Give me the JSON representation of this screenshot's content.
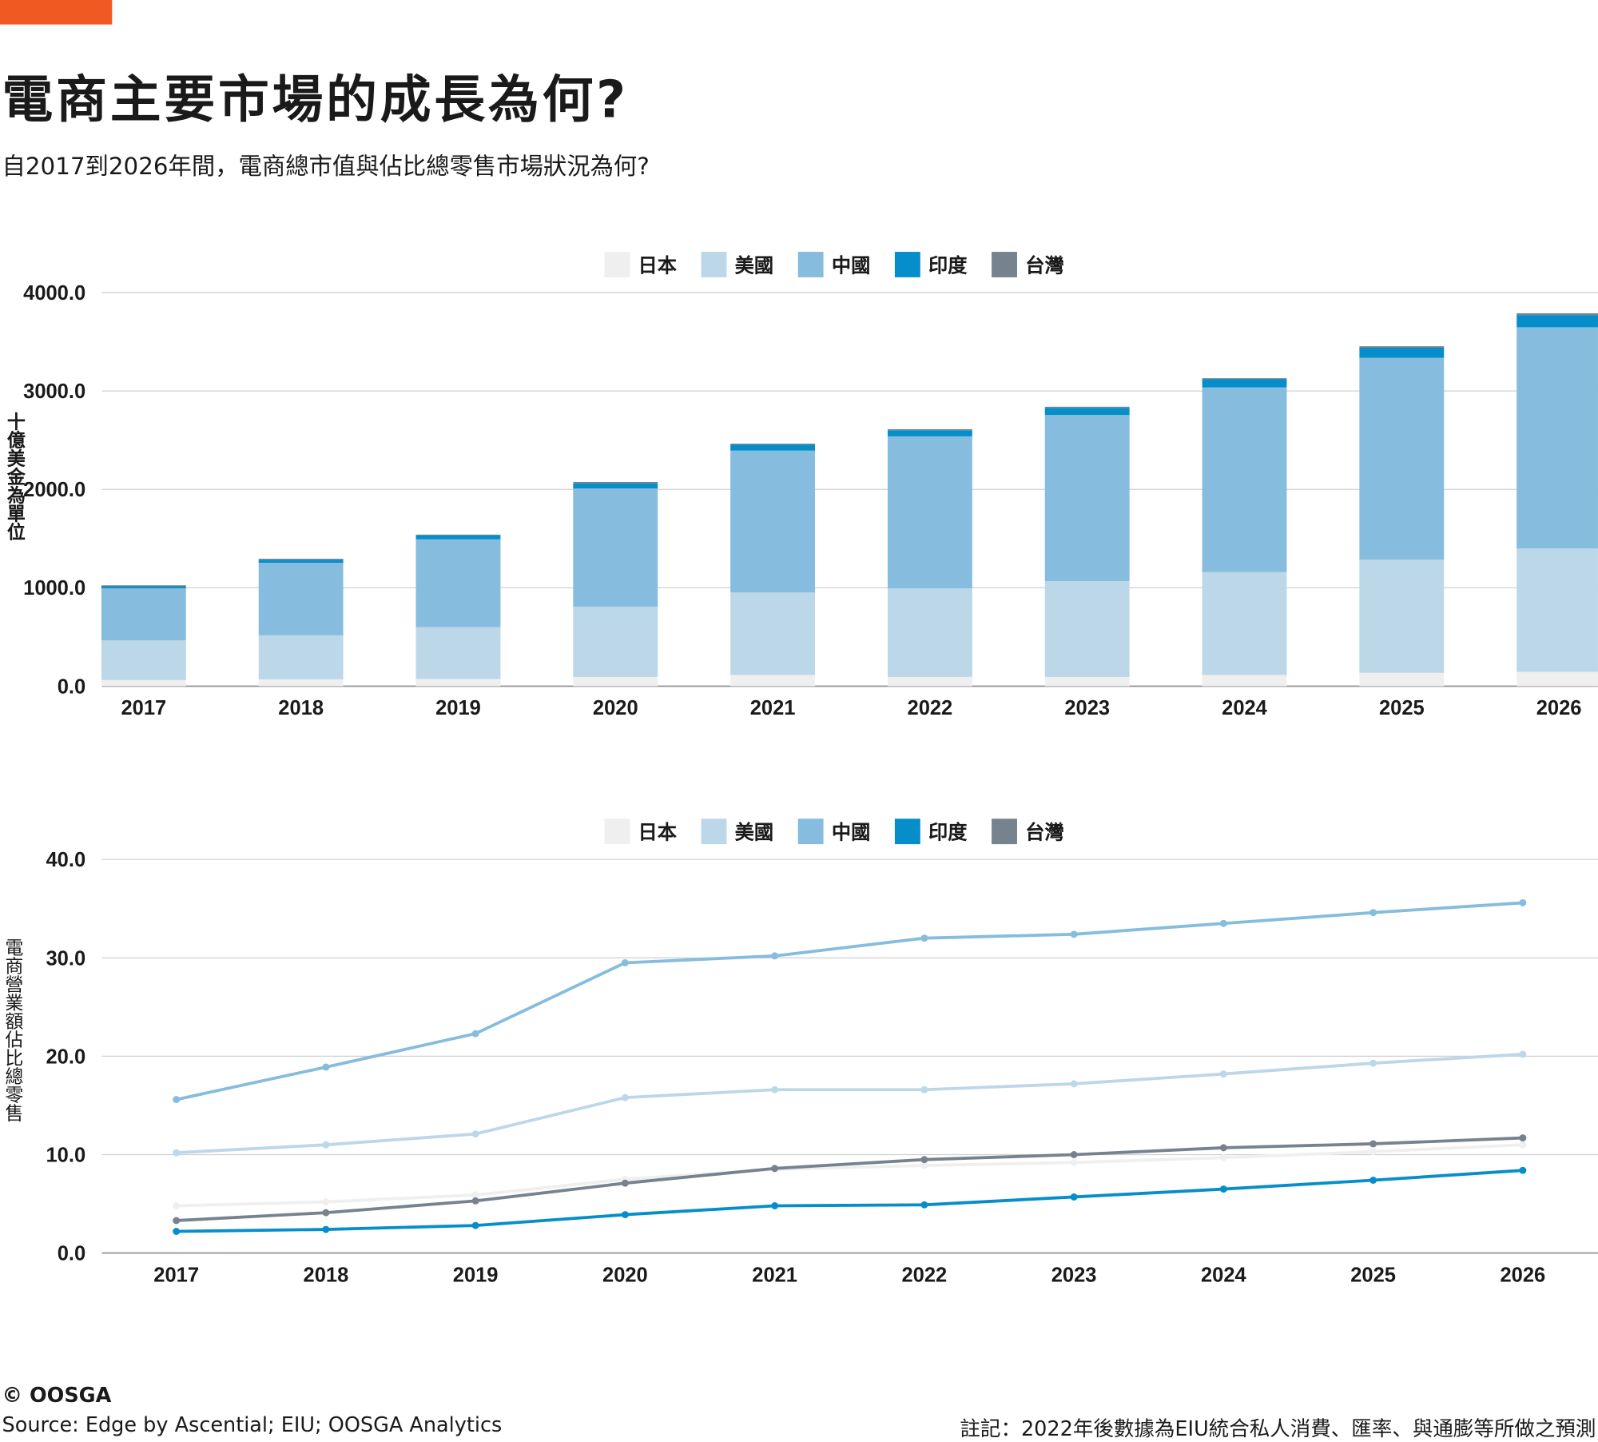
{
  "title": "電商主要市場的成長為何?",
  "subtitle": "自2017到2026年間，電商總市值與佔比總零售市場狀況為何?",
  "accent_color": "#f05a22",
  "chart_data": [
    {
      "type": "bar",
      "stacked": true,
      "categories": [
        "2017",
        "2018",
        "2019",
        "2020",
        "2021",
        "2022",
        "2023",
        "2024",
        "2025",
        "2026"
      ],
      "ylabel": "十億美金為單位",
      "ylim": [
        0,
        4000
      ],
      "yticks": [
        "0.0",
        "1000.0",
        "2000.0",
        "3000.0",
        "4000.0"
      ],
      "ytick_values": [
        0,
        1000,
        2000,
        3000,
        4000
      ],
      "grid": true,
      "legend_position": "top-center",
      "series": [
        {
          "name": "日本",
          "color": "#efefef",
          "values": [
            62,
            70,
            73,
            93,
            114,
            93,
            93,
            114,
            135,
            145
          ]
        },
        {
          "name": "美國",
          "color": "#bcd7e8",
          "values": [
            404,
            448,
            528,
            715,
            839,
            902,
            974,
            1047,
            1150,
            1254
          ]
        },
        {
          "name": "中國",
          "color": "#86bcdd",
          "values": [
            529,
            736,
            891,
            1202,
            1441,
            1544,
            1689,
            1875,
            2052,
            2249
          ]
        },
        {
          "name": "印度",
          "color": "#068ecb",
          "values": [
            20,
            31,
            42,
            52,
            62,
            62,
            73,
            83,
            103,
            124
          ]
        },
        {
          "name": "台灣",
          "color": "#76838f",
          "values": [
            10,
            10,
            6,
            13,
            9,
            11,
            11,
            11,
            15,
            18
          ]
        }
      ]
    },
    {
      "type": "line",
      "categories": [
        "2017",
        "2018",
        "2019",
        "2020",
        "2021",
        "2022",
        "2023",
        "2024",
        "2025",
        "2026"
      ],
      "ylabel": "電商營業額佔比總零售",
      "ylim": [
        0,
        40
      ],
      "yticks": [
        "0.0",
        "10.0",
        "20.0",
        "30.0",
        "40.0"
      ],
      "ytick_values": [
        0,
        10,
        20,
        30,
        40
      ],
      "grid": true,
      "legend_position": "top-center",
      "series": [
        {
          "name": "日本",
          "color": "#efefef",
          "values": [
            4.8,
            5.2,
            5.9,
            7.5,
            8.5,
            8.9,
            9.2,
            9.7,
            10.3,
            11.0
          ]
        },
        {
          "name": "美國",
          "color": "#bcd7e8",
          "values": [
            10.2,
            11.0,
            12.1,
            15.8,
            16.6,
            16.6,
            17.2,
            18.2,
            19.3,
            20.2
          ]
        },
        {
          "name": "中國",
          "color": "#86bcdd",
          "values": [
            15.6,
            18.9,
            22.3,
            29.5,
            30.2,
            32.0,
            32.4,
            33.5,
            34.6,
            35.6
          ]
        },
        {
          "name": "印度",
          "color": "#068ecb",
          "values": [
            2.2,
            2.4,
            2.8,
            3.9,
            4.8,
            4.9,
            5.7,
            6.5,
            7.4,
            8.4
          ]
        },
        {
          "name": "台灣",
          "color": "#76838f",
          "values": [
            3.3,
            4.1,
            5.3,
            7.1,
            8.6,
            9.5,
            10.0,
            10.7,
            11.1,
            11.7
          ]
        }
      ]
    }
  ],
  "footer": {
    "copyright": "© OOSGA",
    "source": "Source:  Edge by Ascential; EIU; OOSGA Analytics",
    "note": "註記：2022年後數據為EIU統合私人消費、匯率、與通膨等所做之預測"
  }
}
